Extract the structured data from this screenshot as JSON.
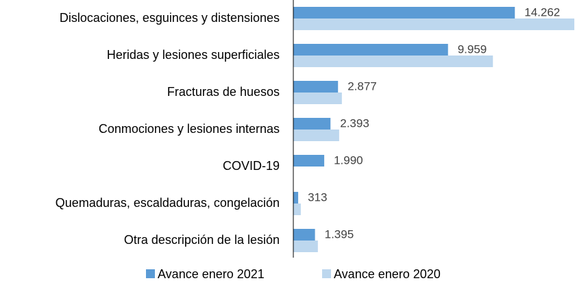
{
  "chart_data": {
    "type": "bar",
    "orientation": "horizontal",
    "categories": [
      "Dislocaciones, esguinces y distensiones",
      "Heridas y lesiones superficiales",
      "Fracturas de huesos",
      "Conmociones y lesiones internas",
      "COVID-19",
      "Quemaduras, escaldaduras, congelación",
      "Otra descripción de la lesión"
    ],
    "series": [
      {
        "name": "Avance enero 2021",
        "color": "#5b9bd5",
        "values": [
          14262,
          9959,
          2877,
          2393,
          1990,
          313,
          1395
        ],
        "value_labels": [
          "14.262",
          "9.959",
          "2.877",
          "2.393",
          "1.990",
          "313",
          "1.395"
        ]
      },
      {
        "name": "Avance enero 2020",
        "color": "#bdd7ee",
        "values": [
          18090,
          12850,
          3125,
          2950,
          null,
          480,
          1580
        ]
      }
    ]
  }
}
